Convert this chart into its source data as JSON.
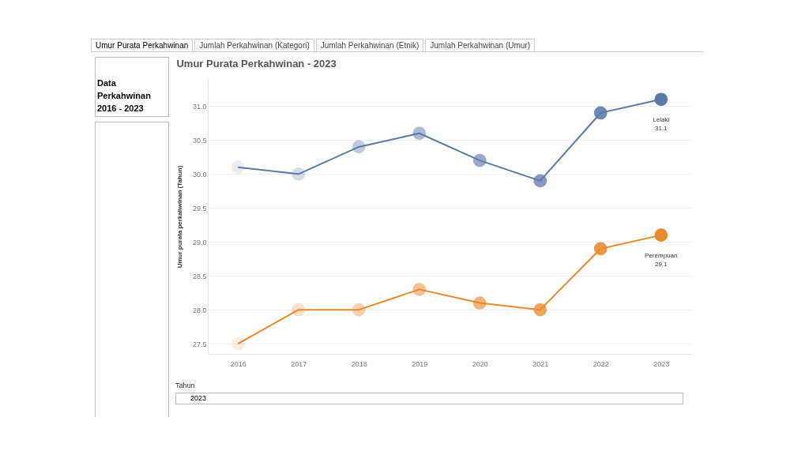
{
  "chart_data": {
    "type": "line",
    "title": "Umur Purata Perkahwinan - 2023",
    "ylabel": "Umur purata perkahwinan (Tahun)",
    "categories": [
      "2016",
      "2017",
      "2018",
      "2019",
      "2020",
      "2021",
      "2022",
      "2023"
    ],
    "series": [
      {
        "name": "Lelaki",
        "color": "#5b7aa8",
        "values": [
          30.1,
          30.0,
          30.4,
          30.6,
          30.2,
          29.9,
          30.9,
          31.1
        ],
        "value_labels": [
          null,
          null,
          null,
          null,
          null,
          null,
          null,
          "31.1"
        ]
      },
      {
        "name": "Perempuan",
        "color": "#e8892a",
        "values": [
          27.5,
          28.0,
          28.0,
          28.3,
          28.1,
          28.0,
          28.9,
          29.1
        ],
        "value_labels": [
          null,
          null,
          null,
          null,
          null,
          null,
          null,
          "29.1"
        ]
      }
    ],
    "ylim": [
      27.35,
      31.4
    ],
    "yticks": [
      27.5,
      {
        "value": 28,
        "label": "28.0"
      },
      28.5,
      {
        "value": 29,
        "label": "29.0"
      },
      29.5,
      {
        "value": 30,
        "label": "30.0"
      },
      30.5,
      {
        "value": 31,
        "label": "31.0"
      }
    ],
    "grid": "y",
    "legend": false,
    "marker": "circle",
    "line_style": "solid",
    "annotations": [
      "Umur Purata Perkahwinan",
      "Jumlah Perkahwinan (Kategori)",
      "Jumlah Perkahwinan (Etnik)",
      "Jumlah Perkahwinan (Umur)",
      "Data Perkahwinan 2016 - 2023",
      "Tahun",
      "2023"
    ]
  }
}
